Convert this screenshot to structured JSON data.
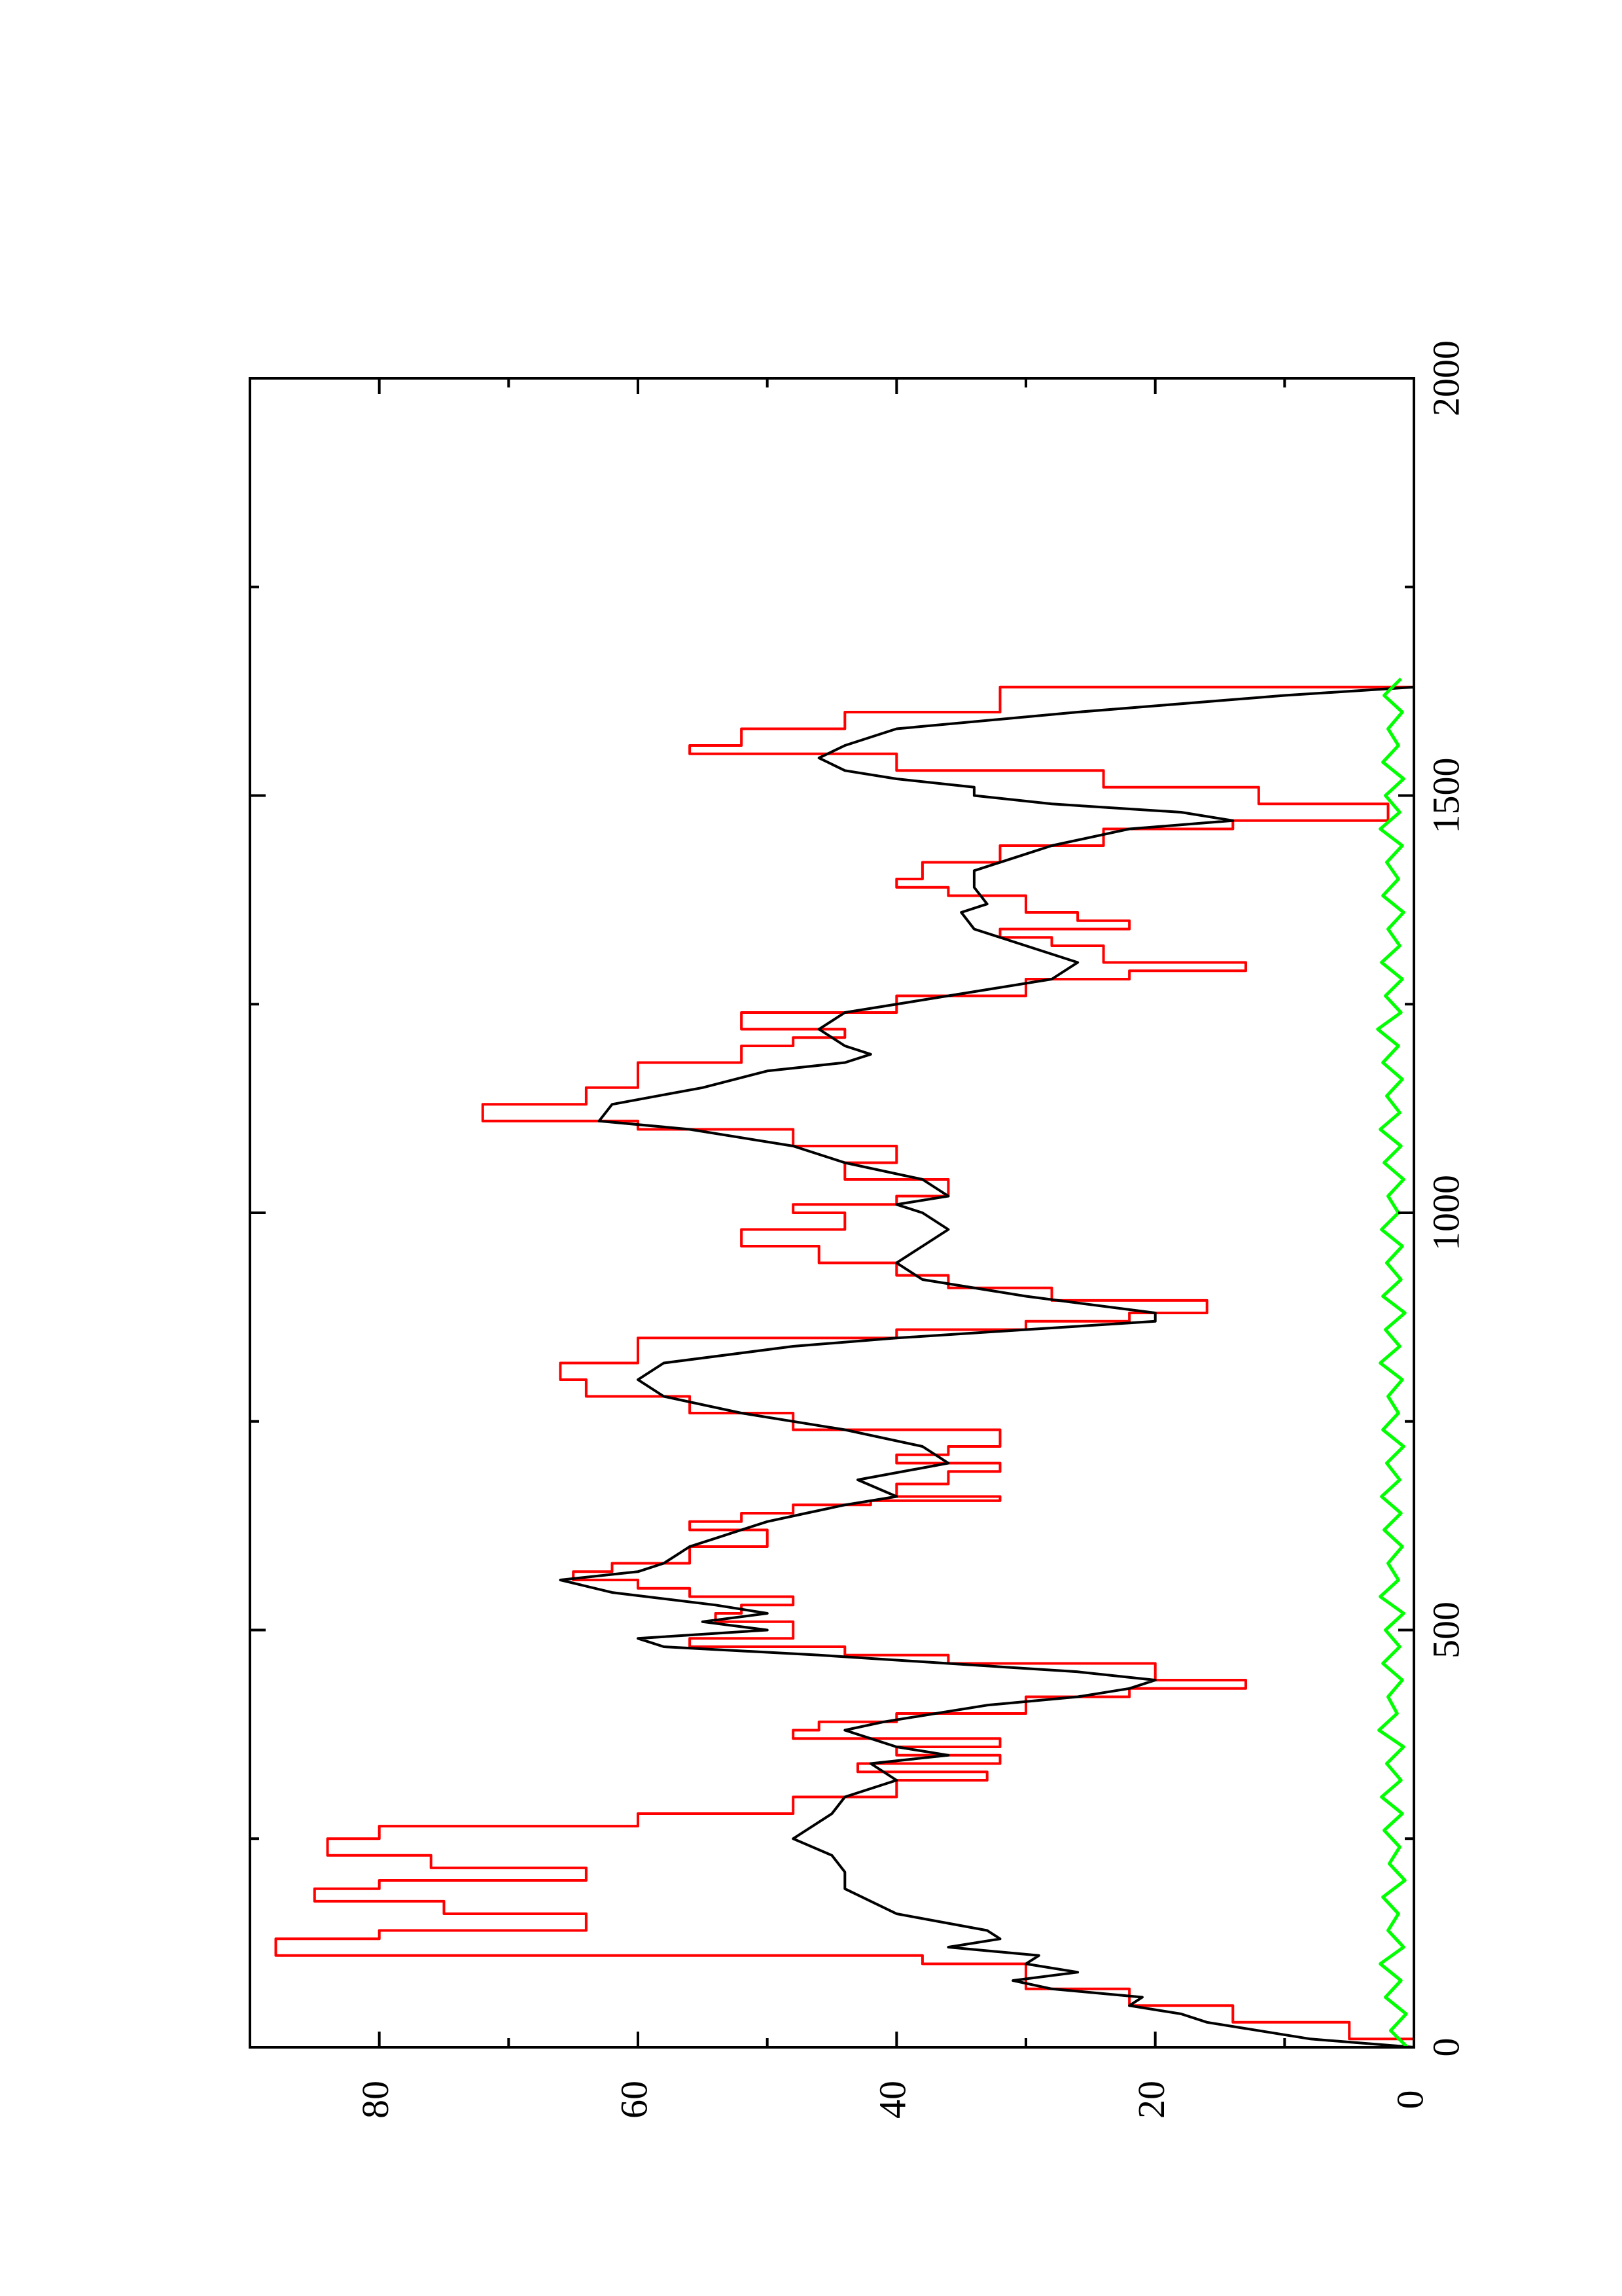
{
  "chart_data": {
    "type": "line",
    "orientation": "rotated-90-clockwise",
    "title": "",
    "xlabel": "",
    "ylabel": "",
    "xlim": [
      0,
      2000
    ],
    "ylim": [
      0,
      90
    ],
    "x_ticks": [
      0,
      500,
      1000,
      1500,
      2000
    ],
    "x_tick_labels": [
      "0",
      "500",
      "1000",
      "1500",
      "2000"
    ],
    "x_minor_ticks": [
      250,
      750,
      1250,
      1750
    ],
    "y_ticks": [
      0,
      20,
      40,
      60,
      80
    ],
    "y_tick_labels": [
      "0",
      "20",
      "40",
      "60",
      "80"
    ],
    "y_minor_ticks": [
      10,
      30,
      50,
      70
    ],
    "grid": false,
    "legend": "none",
    "series": [
      {
        "color": "#ff0000",
        "style": "step",
        "points": [
          [
            0,
            0
          ],
          [
            10,
            5
          ],
          [
            30,
            14
          ],
          [
            50,
            22
          ],
          [
            70,
            30
          ],
          [
            100,
            38
          ],
          [
            110,
            88
          ],
          [
            130,
            80
          ],
          [
            140,
            64
          ],
          [
            160,
            75
          ],
          [
            175,
            85
          ],
          [
            190,
            80
          ],
          [
            200,
            64
          ],
          [
            215,
            76
          ],
          [
            230,
            84
          ],
          [
            250,
            80
          ],
          [
            265,
            60
          ],
          [
            280,
            48
          ],
          [
            300,
            40
          ],
          [
            320,
            33
          ],
          [
            330,
            43
          ],
          [
            340,
            32
          ],
          [
            350,
            40
          ],
          [
            360,
            32
          ],
          [
            370,
            48
          ],
          [
            380,
            46
          ],
          [
            390,
            40
          ],
          [
            400,
            30
          ],
          [
            420,
            22
          ],
          [
            430,
            13
          ],
          [
            440,
            20
          ],
          [
            460,
            36
          ],
          [
            470,
            44
          ],
          [
            480,
            56
          ],
          [
            490,
            48
          ],
          [
            500,
            48
          ],
          [
            510,
            54
          ],
          [
            520,
            52
          ],
          [
            530,
            48
          ],
          [
            540,
            56
          ],
          [
            550,
            60
          ],
          [
            560,
            65
          ],
          [
            570,
            62
          ],
          [
            580,
            56
          ],
          [
            600,
            50
          ],
          [
            620,
            56
          ],
          [
            630,
            52
          ],
          [
            640,
            48
          ],
          [
            650,
            42
          ],
          [
            655,
            32
          ],
          [
            660,
            40
          ],
          [
            675,
            36
          ],
          [
            690,
            32
          ],
          [
            700,
            40
          ],
          [
            710,
            36
          ],
          [
            720,
            32
          ],
          [
            740,
            48
          ],
          [
            760,
            56
          ],
          [
            780,
            64
          ],
          [
            800,
            66
          ],
          [
            820,
            60
          ],
          [
            850,
            40
          ],
          [
            860,
            30
          ],
          [
            870,
            22
          ],
          [
            880,
            16
          ],
          [
            895,
            28
          ],
          [
            910,
            36
          ],
          [
            925,
            40
          ],
          [
            940,
            46
          ],
          [
            960,
            52
          ],
          [
            980,
            44
          ],
          [
            1000,
            48
          ],
          [
            1010,
            40
          ],
          [
            1020,
            36
          ],
          [
            1040,
            44
          ],
          [
            1060,
            40
          ],
          [
            1080,
            48
          ],
          [
            1100,
            60
          ],
          [
            1110,
            72
          ],
          [
            1130,
            64
          ],
          [
            1150,
            60
          ],
          [
            1180,
            52
          ],
          [
            1200,
            48
          ],
          [
            1210,
            44
          ],
          [
            1220,
            52
          ],
          [
            1240,
            40
          ],
          [
            1260,
            30
          ],
          [
            1280,
            22
          ],
          [
            1290,
            13
          ],
          [
            1300,
            24
          ],
          [
            1320,
            28
          ],
          [
            1330,
            32
          ],
          [
            1340,
            22
          ],
          [
            1350,
            26
          ],
          [
            1360,
            30
          ],
          [
            1380,
            36
          ],
          [
            1390,
            40
          ],
          [
            1400,
            38
          ],
          [
            1420,
            32
          ],
          [
            1440,
            24
          ],
          [
            1460,
            14
          ],
          [
            1470,
            2
          ],
          [
            1490,
            12
          ],
          [
            1510,
            24
          ],
          [
            1530,
            40
          ],
          [
            1550,
            56
          ],
          [
            1560,
            52
          ],
          [
            1580,
            44
          ],
          [
            1600,
            32
          ],
          [
            1630,
            0
          ]
        ]
      },
      {
        "color": "#000000",
        "style": "line",
        "points": [
          [
            0,
            0
          ],
          [
            10,
            8
          ],
          [
            30,
            16
          ],
          [
            40,
            18
          ],
          [
            50,
            22
          ],
          [
            60,
            21
          ],
          [
            70,
            28
          ],
          [
            80,
            31
          ],
          [
            90,
            26
          ],
          [
            100,
            30
          ],
          [
            110,
            29
          ],
          [
            120,
            36
          ],
          [
            130,
            32
          ],
          [
            140,
            33
          ],
          [
            160,
            40
          ],
          [
            190,
            44
          ],
          [
            210,
            44
          ],
          [
            230,
            45
          ],
          [
            250,
            48
          ],
          [
            260,
            47
          ],
          [
            280,
            45
          ],
          [
            300,
            44
          ],
          [
            320,
            40
          ],
          [
            340,
            42
          ],
          [
            350,
            36
          ],
          [
            360,
            40
          ],
          [
            370,
            42
          ],
          [
            380,
            44
          ],
          [
            390,
            41
          ],
          [
            410,
            33
          ],
          [
            420,
            26
          ],
          [
            430,
            22
          ],
          [
            440,
            20
          ],
          [
            450,
            26
          ],
          [
            460,
            36
          ],
          [
            470,
            46
          ],
          [
            480,
            58
          ],
          [
            490,
            60
          ],
          [
            500,
            50
          ],
          [
            510,
            55
          ],
          [
            520,
            50
          ],
          [
            530,
            54
          ],
          [
            545,
            62
          ],
          [
            560,
            66
          ],
          [
            570,
            60
          ],
          [
            580,
            58
          ],
          [
            590,
            57
          ],
          [
            600,
            56
          ],
          [
            610,
            54
          ],
          [
            620,
            52
          ],
          [
            630,
            50
          ],
          [
            640,
            47
          ],
          [
            650,
            44
          ],
          [
            660,
            40
          ],
          [
            680,
            43
          ],
          [
            700,
            36
          ],
          [
            720,
            38
          ],
          [
            740,
            44
          ],
          [
            760,
            52
          ],
          [
            780,
            58
          ],
          [
            800,
            60
          ],
          [
            820,
            58
          ],
          [
            840,
            48
          ],
          [
            850,
            40
          ],
          [
            860,
            30
          ],
          [
            870,
            20
          ],
          [
            880,
            20
          ],
          [
            900,
            30
          ],
          [
            920,
            38
          ],
          [
            940,
            40
          ],
          [
            960,
            38
          ],
          [
            980,
            36
          ],
          [
            1000,
            38
          ],
          [
            1010,
            40
          ],
          [
            1020,
            36
          ],
          [
            1040,
            38
          ],
          [
            1060,
            44
          ],
          [
            1080,
            48
          ],
          [
            1100,
            56
          ],
          [
            1110,
            63
          ],
          [
            1130,
            62
          ],
          [
            1150,
            55
          ],
          [
            1170,
            50
          ],
          [
            1180,
            44
          ],
          [
            1190,
            42
          ],
          [
            1200,
            44
          ],
          [
            1220,
            46
          ],
          [
            1240,
            44
          ],
          [
            1260,
            36
          ],
          [
            1280,
            28
          ],
          [
            1300,
            26
          ],
          [
            1320,
            30
          ],
          [
            1340,
            34
          ],
          [
            1360,
            35
          ],
          [
            1370,
            33
          ],
          [
            1390,
            34
          ],
          [
            1410,
            34
          ],
          [
            1430,
            30
          ],
          [
            1440,
            28
          ],
          [
            1460,
            22
          ],
          [
            1470,
            14
          ],
          [
            1480,
            18
          ],
          [
            1490,
            28
          ],
          [
            1500,
            34
          ],
          [
            1510,
            34
          ],
          [
            1520,
            40
          ],
          [
            1530,
            44
          ],
          [
            1545,
            46
          ],
          [
            1560,
            44
          ],
          [
            1580,
            40
          ],
          [
            1600,
            26
          ],
          [
            1620,
            10
          ],
          [
            1630,
            0
          ]
        ]
      },
      {
        "color": "#00ff00",
        "style": "noise",
        "points": [
          [
            0,
            0.5
          ],
          [
            20,
            1.8
          ],
          [
            40,
            0.6
          ],
          [
            60,
            2.2
          ],
          [
            80,
            1.0
          ],
          [
            100,
            2.6
          ],
          [
            120,
            0.8
          ],
          [
            140,
            2.0
          ],
          [
            160,
            1.2
          ],
          [
            180,
            2.4
          ],
          [
            200,
            0.7
          ],
          [
            220,
            1.9
          ],
          [
            240,
            1.1
          ],
          [
            260,
            2.3
          ],
          [
            280,
            0.9
          ],
          [
            300,
            2.5
          ],
          [
            320,
            1.0
          ],
          [
            340,
            2.1
          ],
          [
            360,
            0.8
          ],
          [
            380,
            2.7
          ],
          [
            400,
            1.3
          ],
          [
            420,
            2.0
          ],
          [
            440,
            0.9
          ],
          [
            460,
            2.4
          ],
          [
            480,
            1.1
          ],
          [
            500,
            2.2
          ],
          [
            520,
            0.8
          ],
          [
            540,
            2.6
          ],
          [
            560,
            1.2
          ],
          [
            580,
            2.0
          ],
          [
            600,
            0.9
          ],
          [
            620,
            2.3
          ],
          [
            640,
            1.0
          ],
          [
            660,
            2.5
          ],
          [
            680,
            1.1
          ],
          [
            700,
            2.1
          ],
          [
            720,
            0.8
          ],
          [
            740,
            2.4
          ],
          [
            760,
            1.2
          ],
          [
            780,
            2.0
          ],
          [
            800,
            0.9
          ],
          [
            820,
            2.6
          ],
          [
            840,
            1.1
          ],
          [
            860,
            2.2
          ],
          [
            880,
            0.7
          ],
          [
            900,
            2.4
          ],
          [
            920,
            1.0
          ],
          [
            940,
            2.1
          ],
          [
            960,
            0.9
          ],
          [
            980,
            2.5
          ],
          [
            1000,
            1.2
          ],
          [
            1020,
            2.0
          ],
          [
            1040,
            0.8
          ],
          [
            1060,
            2.3
          ],
          [
            1080,
            1.0
          ],
          [
            1100,
            2.6
          ],
          [
            1120,
            1.1
          ],
          [
            1140,
            2.1
          ],
          [
            1160,
            0.9
          ],
          [
            1180,
            2.4
          ],
          [
            1200,
            1.2
          ],
          [
            1220,
            2.8
          ],
          [
            1240,
            1.0
          ],
          [
            1260,
            2.2
          ],
          [
            1280,
            0.9
          ],
          [
            1300,
            2.5
          ],
          [
            1320,
            1.1
          ],
          [
            1340,
            2.0
          ],
          [
            1360,
            0.8
          ],
          [
            1380,
            2.4
          ],
          [
            1400,
            1.2
          ],
          [
            1420,
            2.1
          ],
          [
            1440,
            0.9
          ],
          [
            1460,
            2.6
          ],
          [
            1480,
            1.1
          ],
          [
            1500,
            2.2
          ],
          [
            1520,
            0.8
          ],
          [
            1540,
            2.4
          ],
          [
            1560,
            1.2
          ],
          [
            1580,
            2.0
          ],
          [
            1600,
            0.9
          ],
          [
            1620,
            2.3
          ],
          [
            1640,
            1.0
          ]
        ]
      }
    ]
  }
}
